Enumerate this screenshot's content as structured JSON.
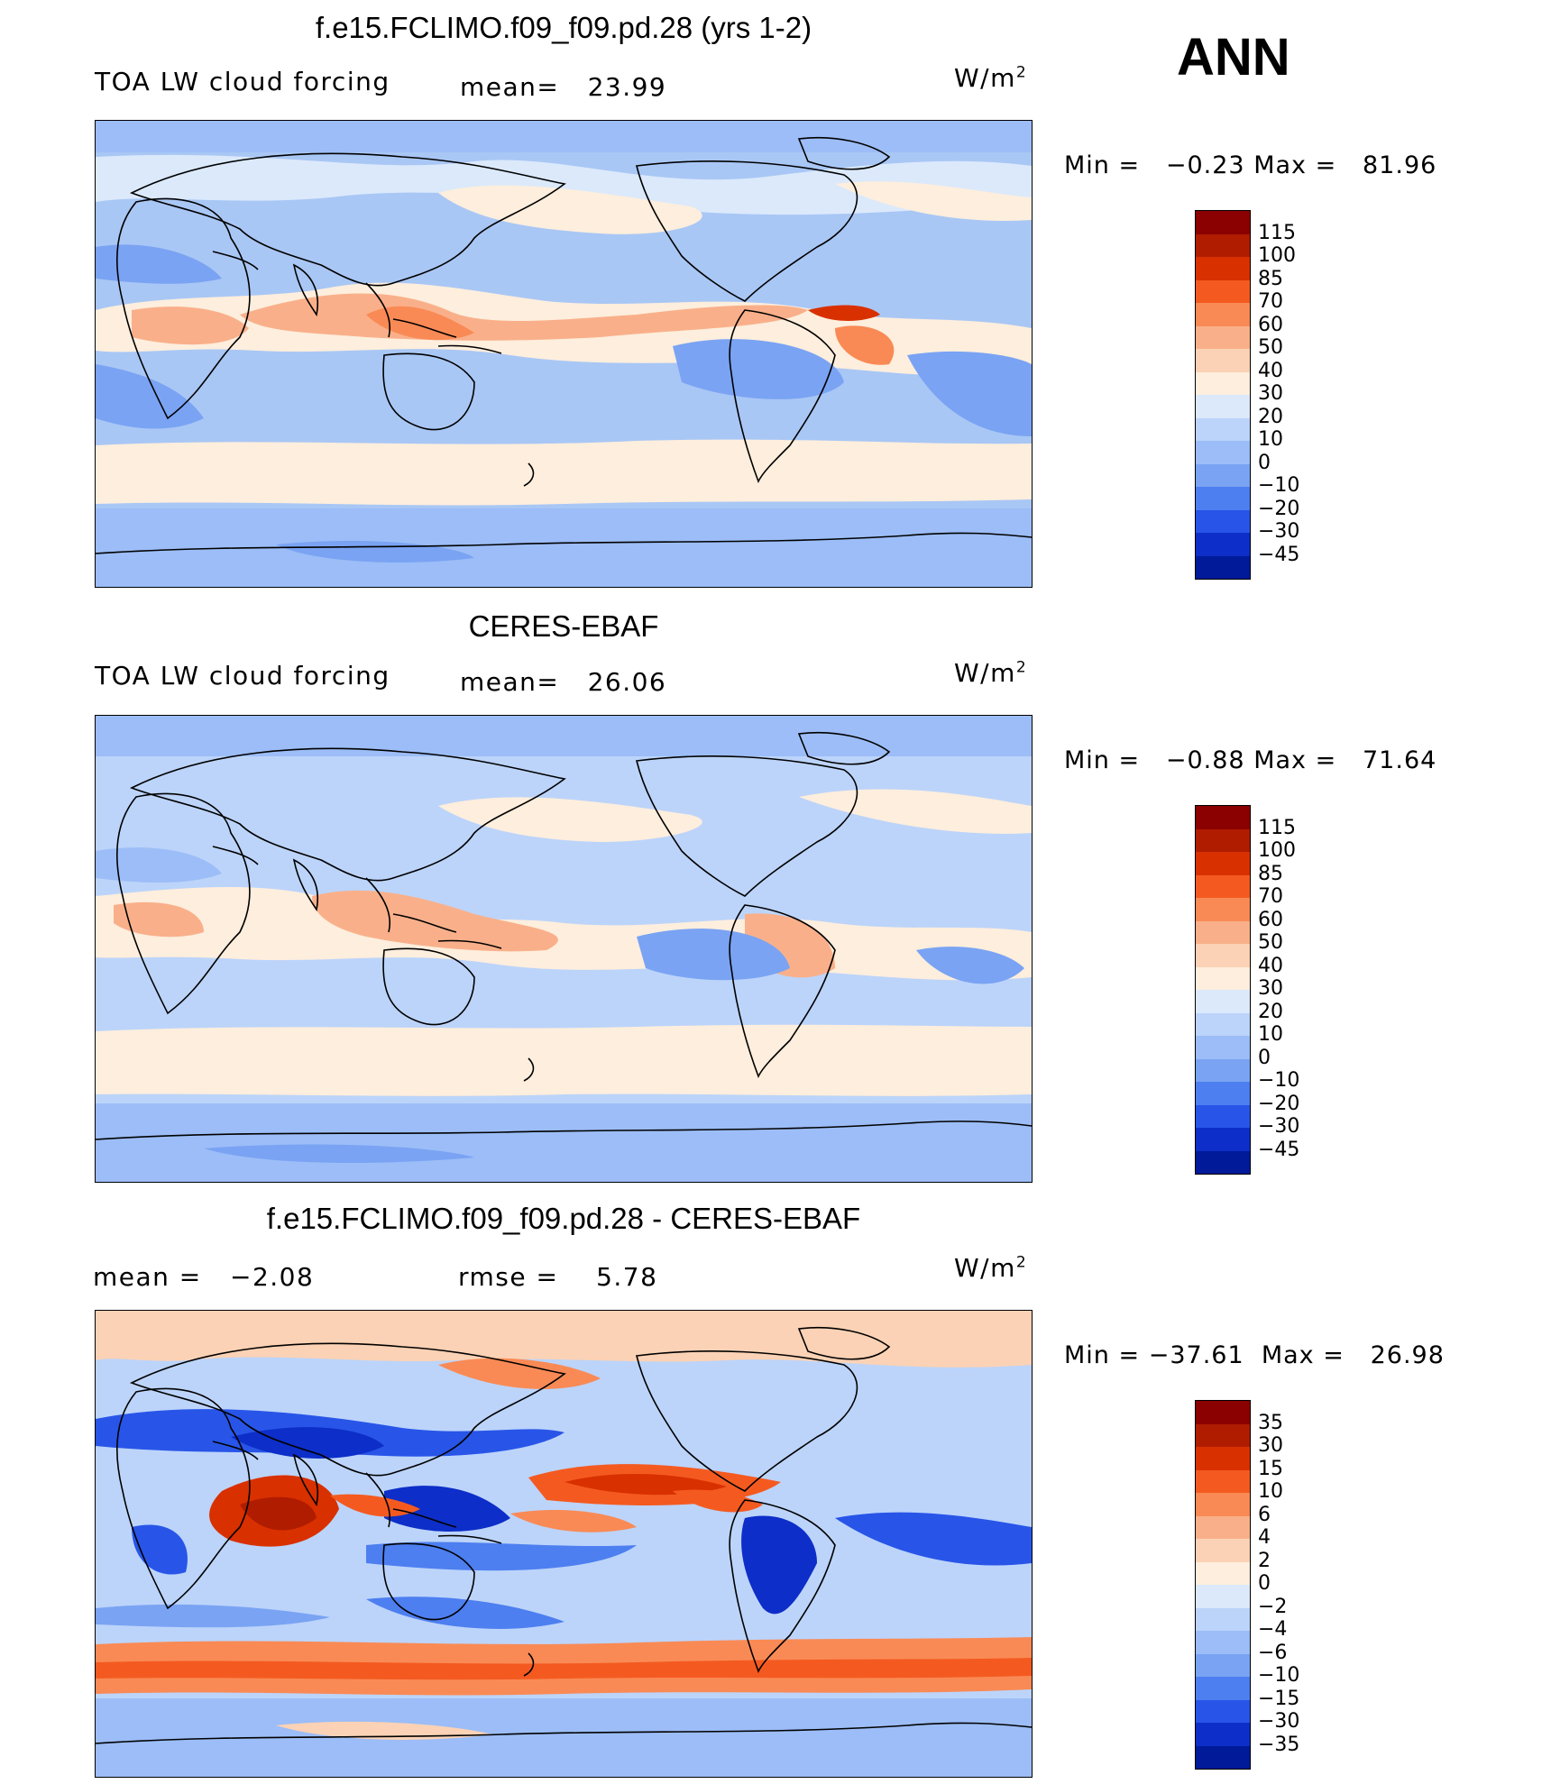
{
  "season": "ANN",
  "units_base": "W/m",
  "units_exp": "2",
  "panels": [
    {
      "title": "f.e15.FCLIMO.f09_f09.pd.28 (yrs 1-2)",
      "left_label": "TOA LW cloud forcing",
      "mid_label": "mean=",
      "mid_value": "23.99",
      "min_label": "Min =",
      "min_value": "−0.23",
      "max_label": "Max =",
      "max_value": "81.96"
    },
    {
      "title": "CERES-EBAF",
      "left_label": "TOA LW cloud forcing",
      "mid_label": "mean=",
      "mid_value": "26.06",
      "min_label": "Min =",
      "min_value": "−0.88",
      "max_label": "Max =",
      "max_value": "71.64"
    },
    {
      "title": "f.e15.FCLIMO.f09_f09.pd.28 - CERES-EBAF",
      "left_label": "mean =",
      "left_value": "−2.08",
      "mid_label": "rmse =",
      "mid_value": "5.78",
      "min_label": "Min =",
      "min_value": "−37.61",
      "max_label": "Max =",
      "max_value": "26.98"
    }
  ],
  "colorbar_fields": {
    "labels": [
      "115",
      "100",
      "85",
      "70",
      "60",
      "50",
      "40",
      "30",
      "20",
      "10",
      "0",
      "−10",
      "−20",
      "−30",
      "−45"
    ],
    "colors": [
      "#8b0000",
      "#b01c00",
      "#d93000",
      "#f45a20",
      "#f98a55",
      "#f9b08a",
      "#fbd2b5",
      "#fdeedd",
      "#dbe9fb",
      "#bcd4fa",
      "#9cbdf7",
      "#7aa3f3",
      "#4d7ff0",
      "#2855e8",
      "#0d2ec8",
      "#001a99"
    ]
  },
  "colorbar_diff": {
    "labels": [
      "35",
      "30",
      "15",
      "10",
      "6",
      "4",
      "2",
      "0",
      "−2",
      "−4",
      "−6",
      "−10",
      "−15",
      "−30",
      "−35"
    ],
    "colors": [
      "#8b0000",
      "#b01c00",
      "#d93000",
      "#f45a20",
      "#f98a55",
      "#f9b08a",
      "#fbd2b5",
      "#fdeedd",
      "#dbe9fb",
      "#bcd4fa",
      "#9cbdf7",
      "#7aa3f3",
      "#4d7ff0",
      "#2855e8",
      "#0d2ec8",
      "#001a99"
    ]
  }
}
